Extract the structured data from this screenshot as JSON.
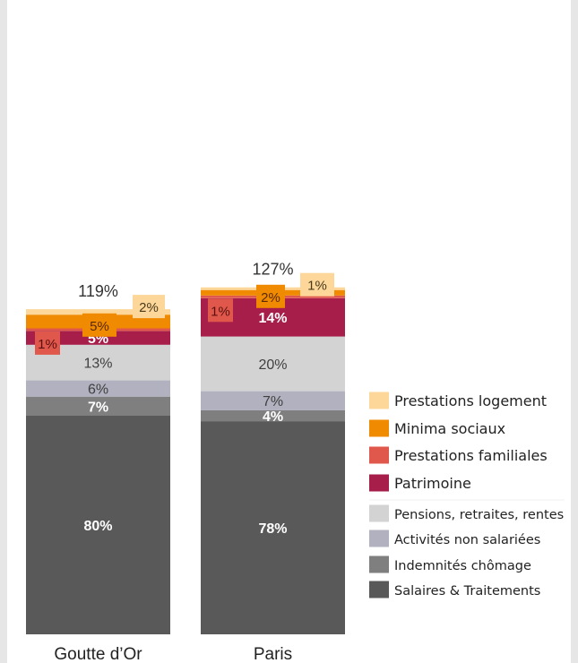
{
  "chart_data": {
    "type": "bar",
    "stacked": true,
    "categories": [
      "Goutte d’Or",
      "Paris"
    ],
    "totals": [
      "119%",
      "127%"
    ],
    "ylim": [
      0,
      127
    ],
    "series": [
      {
        "name": "Salaires & Traitements",
        "values": [
          80,
          78
        ],
        "labels": [
          "80%",
          "78%"
        ],
        "color": "#595959",
        "label_color": "#ffffff"
      },
      {
        "name": "Indemnités chômage",
        "values": [
          7,
          4
        ],
        "labels": [
          "7%",
          "4%"
        ],
        "color": "#7f7f7f",
        "label_color": "#ffffff"
      },
      {
        "name": "Activités non salariées",
        "values": [
          6,
          7
        ],
        "labels": [
          "6%",
          "7%"
        ],
        "color": "#b1b1bf",
        "label_color": "#404040"
      },
      {
        "name": "Pensions, retraites, rentes",
        "values": [
          13,
          20
        ],
        "labels": [
          "13%",
          "20%"
        ],
        "color": "#d3d3d3",
        "label_color": "#404040"
      },
      {
        "name": "Patrimoine",
        "values": [
          5,
          14
        ],
        "labels": [
          "5%",
          "14%"
        ],
        "color": "#a61e49",
        "label_color": "#ffffff"
      },
      {
        "name": "Prestations familiales",
        "values": [
          1,
          1
        ],
        "labels": [
          "1%",
          "1%"
        ],
        "color": "#e0584b",
        "label_color": "#5a1010"
      },
      {
        "name": "Minima sociaux",
        "values": [
          5,
          2
        ],
        "labels": [
          "5%",
          "2%"
        ],
        "color": "#f08a00",
        "label_color": "#5a2a00"
      },
      {
        "name": "Prestations logement",
        "values": [
          2,
          1
        ],
        "labels": [
          "2%",
          "1%"
        ],
        "color": "#fdd79a",
        "label_color": "#4a3a1a"
      }
    ],
    "legend": {
      "placement": "right",
      "group_top": [
        "Prestations logement",
        "Minima sociaux",
        "Prestations familiales",
        "Patrimoine"
      ],
      "group_bottom": [
        "Pensions, retraites, rentes",
        "Activités non salariées",
        "Indemnités chômage",
        "Salaires & Traitements"
      ]
    }
  }
}
